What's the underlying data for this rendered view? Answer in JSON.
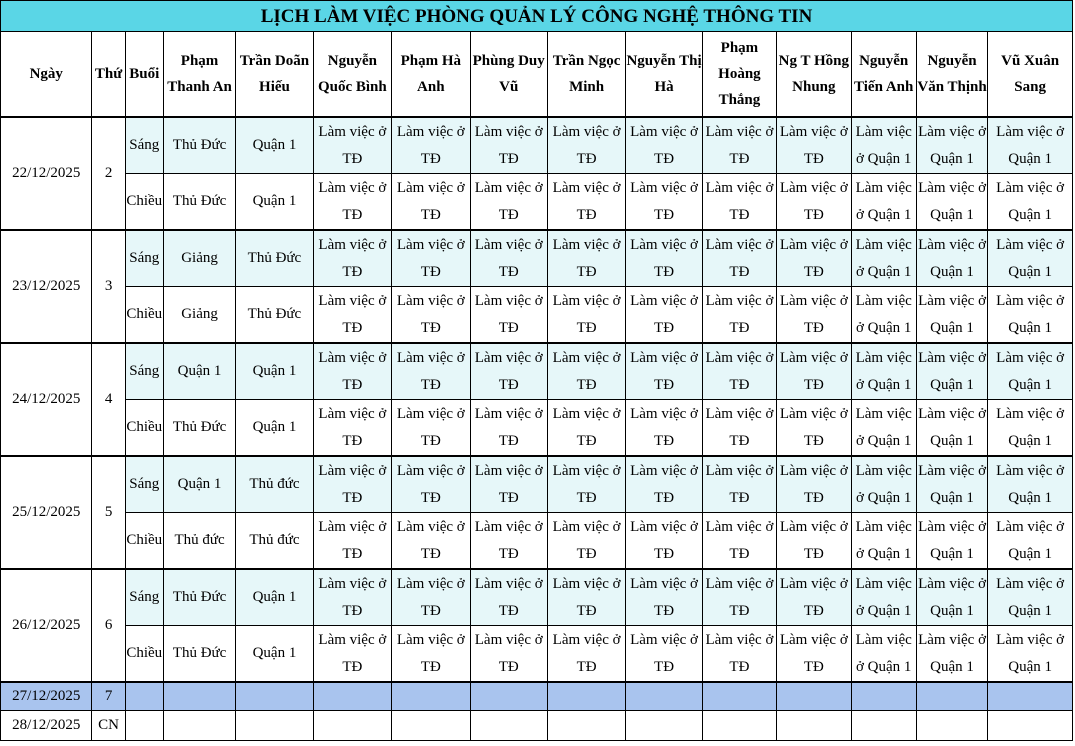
{
  "title": "LỊCH LÀM VIỆC PHÒNG QUẢN LÝ CÔNG NGHỆ THÔNG TIN",
  "headers": {
    "date": "Ngày",
    "weekday": "Thứ",
    "session": "Buổi",
    "staff": [
      "Phạm Thanh An",
      "Trần Doãn Hiếu",
      "Nguyễn Quốc Bình",
      "Phạm Hà Anh",
      "Phùng Duy Vũ",
      "Trần Ngọc Minh",
      "Nguyễn Thị Hà",
      "Phạm Hoàng Thắng",
      "Ng T Hồng Nhung",
      "Nguyễn Tiến Anh",
      "Nguyễn Văn Thịnh",
      "Vũ Xuân Sang"
    ]
  },
  "days": [
    {
      "date": "22/12/2025",
      "weekday": "2",
      "sessions": [
        {
          "name": "Sáng",
          "cells": [
            "Thủ Đức",
            "Quận 1",
            "Làm việc ở TĐ",
            "Làm việc ở TĐ",
            "Làm việc ở TĐ",
            "Làm việc ở TĐ",
            "Làm việc ở TĐ",
            "Làm việc ở TĐ",
            "Làm việc ở TĐ",
            "Làm việc ở Quận 1",
            "Làm việc ở Quận 1",
            "Làm việc ở Quận 1"
          ]
        },
        {
          "name": "Chiều",
          "cells": [
            "Thủ Đức",
            "Quận 1",
            "Làm việc ở TĐ",
            "Làm việc ở TĐ",
            "Làm việc ở TĐ",
            "Làm việc ở TĐ",
            "Làm việc ở TĐ",
            "Làm việc ở TĐ",
            "Làm việc ở TĐ",
            "Làm việc ở Quận 1",
            "Làm việc ở Quận 1",
            "Làm việc ở Quận 1"
          ]
        }
      ]
    },
    {
      "date": "23/12/2025",
      "weekday": "3",
      "sessions": [
        {
          "name": "Sáng",
          "cells": [
            "Giảng",
            "Thủ Đức",
            "Làm việc ở TĐ",
            "Làm việc ở TĐ",
            "Làm việc ở TĐ",
            "Làm việc ở TĐ",
            "Làm việc ở TĐ",
            "Làm việc ở TĐ",
            "Làm việc ở TĐ",
            "Làm việc ở Quận 1",
            "Làm việc ở Quận 1",
            "Làm việc ở Quận 1"
          ]
        },
        {
          "name": "Chiều",
          "cells": [
            "Giảng",
            "Thủ Đức",
            "Làm việc ở TĐ",
            "Làm việc ở TĐ",
            "Làm việc ở TĐ",
            "Làm việc ở TĐ",
            "Làm việc ở TĐ",
            "Làm việc ở TĐ",
            "Làm việc ở TĐ",
            "Làm việc ở Quận 1",
            "Làm việc ở Quận 1",
            "Làm việc ở Quận 1"
          ]
        }
      ]
    },
    {
      "date": "24/12/2025",
      "weekday": "4",
      "sessions": [
        {
          "name": "Sáng",
          "cells": [
            "Quận 1",
            "Quận 1",
            "Làm việc ở TĐ",
            "Làm việc ở TĐ",
            "Làm việc ở TĐ",
            "Làm việc ở TĐ",
            "Làm việc ở TĐ",
            "Làm việc ở TĐ",
            "Làm việc ở TĐ",
            "Làm việc ở Quận 1",
            "Làm việc ở Quận 1",
            "Làm việc ở Quận 1"
          ]
        },
        {
          "name": "Chiều",
          "cells": [
            "Thủ Đức",
            "Quận 1",
            "Làm việc ở TĐ",
            "Làm việc ở TĐ",
            "Làm việc ở TĐ",
            "Làm việc ở TĐ",
            "Làm việc ở TĐ",
            "Làm việc ở TĐ",
            "Làm việc ở TĐ",
            "Làm việc ở Quận 1",
            "Làm việc ở Quận 1",
            "Làm việc ở Quận 1"
          ]
        }
      ]
    },
    {
      "date": "25/12/2025",
      "weekday": "5",
      "sessions": [
        {
          "name": "Sáng",
          "cells": [
            "Quận 1",
            "Thủ đức",
            "Làm việc ở TĐ",
            "Làm việc ở TĐ",
            "Làm việc ở TĐ",
            "Làm việc ở TĐ",
            "Làm việc ở TĐ",
            "Làm việc ở TĐ",
            "Làm việc ở TĐ",
            "Làm việc ở Quận 1",
            "Làm việc ở Quận 1",
            "Làm việc ở Quận 1"
          ]
        },
        {
          "name": "Chiều",
          "cells": [
            "Thủ đức",
            "Thủ đức",
            "Làm việc ở TĐ",
            "Làm việc ở TĐ",
            "Làm việc ở TĐ",
            "Làm việc ở TĐ",
            "Làm việc ở TĐ",
            "Làm việc ở TĐ",
            "Làm việc ở TĐ",
            "Làm việc ở Quận 1",
            "Làm việc ở Quận 1",
            "Làm việc ở Quận 1"
          ]
        }
      ]
    },
    {
      "date": "26/12/2025",
      "weekday": "6",
      "sessions": [
        {
          "name": "Sáng",
          "cells": [
            "Thủ Đức",
            "Quận 1",
            "Làm việc ở TĐ",
            "Làm việc ở TĐ",
            "Làm việc ở TĐ",
            "Làm việc ở TĐ",
            "Làm việc ở TĐ",
            "Làm việc ở TĐ",
            "Làm việc ở TĐ",
            "Làm việc ở Quận 1",
            "Làm việc ở Quận 1",
            "Làm việc ở Quận 1"
          ]
        },
        {
          "name": "Chiều",
          "cells": [
            "Thủ Đức",
            "Quận 1",
            "Làm việc ở TĐ",
            "Làm việc ở TĐ",
            "Làm việc ở TĐ",
            "Làm việc ở TĐ",
            "Làm việc ở TĐ",
            "Làm việc ở TĐ",
            "Làm việc ở TĐ",
            "Làm việc ở Quận 1",
            "Làm việc ở Quận 1",
            "Làm việc ở Quận 1"
          ]
        }
      ]
    }
  ],
  "weekend": [
    {
      "date": "27/12/2025",
      "weekday": "7"
    },
    {
      "date": "28/12/2025",
      "weekday": "CN"
    }
  ],
  "colors": {
    "title_bg": "#5ad6e6",
    "shade_bg": "#e6f7f9",
    "saturday_bg": "#a9c4ee"
  }
}
